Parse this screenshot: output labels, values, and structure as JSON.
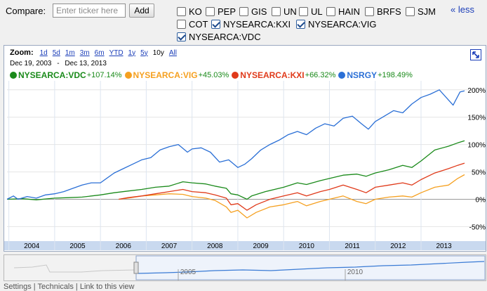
{
  "compare": {
    "label": "Compare:",
    "input_placeholder": "Enter ticker here",
    "input_value": "",
    "add_label": "Add",
    "less_label": "« less",
    "tickers": [
      {
        "symbol": "KO",
        "checked": false
      },
      {
        "symbol": "PEP",
        "checked": false
      },
      {
        "symbol": "GIS",
        "checked": false
      },
      {
        "symbol": "UN",
        "checked": false
      },
      {
        "symbol": "UL",
        "checked": false
      },
      {
        "symbol": "HAIN",
        "checked": false
      },
      {
        "symbol": "BRFS",
        "checked": false
      },
      {
        "symbol": "SJM",
        "checked": false
      },
      {
        "symbol": "COT",
        "checked": false
      },
      {
        "symbol": "NYSEARCA:KXI",
        "checked": true
      },
      {
        "symbol": "NYSEARCA:VIG",
        "checked": true
      },
      {
        "symbol": "NYSEARCA:VDC",
        "checked": true
      }
    ]
  },
  "zoom": {
    "label": "Zoom:",
    "options": [
      "1d",
      "5d",
      "1m",
      "3m",
      "6m",
      "YTD",
      "1y",
      "5y",
      "10y",
      "All"
    ],
    "active": "10y"
  },
  "date_range": {
    "start": "Dec 19, 2003",
    "separator": "-",
    "end": "Dec 13, 2013"
  },
  "icons": {
    "expand": "expand-icon"
  },
  "footer_text": "Settings | Technicals | Link to this view",
  "chart_data": {
    "type": "line",
    "x_tick_labels": [
      "2004",
      "2005",
      "2006",
      "2007",
      "2008",
      "2009",
      "2010",
      "2011",
      "2012",
      "2013"
    ],
    "y_tick_labels": [
      "200%",
      "150%",
      "100%",
      "50%",
      "0%",
      "-50%"
    ],
    "ylim": [
      -70,
      210
    ],
    "x_range": [
      2003.96,
      2013.95
    ],
    "grid": true,
    "legend_position": "top-left",
    "series": [
      {
        "name": "NYSEARCA:VDC",
        "change": "+107.14%",
        "color": "#1a8a1a",
        "points": [
          [
            2003.96,
            0
          ],
          [
            2004.3,
            1
          ],
          [
            2004.6,
            -1
          ],
          [
            2005.0,
            2
          ],
          [
            2005.3,
            3
          ],
          [
            2005.6,
            4
          ],
          [
            2006.0,
            8
          ],
          [
            2006.3,
            12
          ],
          [
            2006.6,
            15
          ],
          [
            2006.9,
            18
          ],
          [
            2007.2,
            22
          ],
          [
            2007.5,
            24
          ],
          [
            2007.8,
            32
          ],
          [
            2008.0,
            30
          ],
          [
            2008.3,
            28
          ],
          [
            2008.5,
            24
          ],
          [
            2008.75,
            20
          ],
          [
            2008.85,
            10
          ],
          [
            2009.0,
            8
          ],
          [
            2009.2,
            0
          ],
          [
            2009.3,
            6
          ],
          [
            2009.6,
            14
          ],
          [
            2010.0,
            22
          ],
          [
            2010.3,
            30
          ],
          [
            2010.5,
            27
          ],
          [
            2010.8,
            34
          ],
          [
            2011.0,
            38
          ],
          [
            2011.3,
            44
          ],
          [
            2011.6,
            46
          ],
          [
            2011.8,
            42
          ],
          [
            2012.0,
            48
          ],
          [
            2012.3,
            54
          ],
          [
            2012.6,
            62
          ],
          [
            2012.8,
            58
          ],
          [
            2013.0,
            70
          ],
          [
            2013.3,
            90
          ],
          [
            2013.6,
            97
          ],
          [
            2013.8,
            103
          ],
          [
            2013.95,
            107
          ]
        ]
      },
      {
        "name": "NYSEARCA:VIG",
        "change": "+45.03%",
        "color": "#f5a020",
        "points": [
          [
            2006.4,
            0
          ],
          [
            2006.6,
            2
          ],
          [
            2006.9,
            6
          ],
          [
            2007.2,
            8
          ],
          [
            2007.5,
            10
          ],
          [
            2007.8,
            9
          ],
          [
            2008.0,
            5
          ],
          [
            2008.3,
            2
          ],
          [
            2008.5,
            -2
          ],
          [
            2008.75,
            -14
          ],
          [
            2008.85,
            -24
          ],
          [
            2009.0,
            -20
          ],
          [
            2009.2,
            -34
          ],
          [
            2009.4,
            -24
          ],
          [
            2009.7,
            -14
          ],
          [
            2010.0,
            -10
          ],
          [
            2010.3,
            -4
          ],
          [
            2010.5,
            -12
          ],
          [
            2010.8,
            -4
          ],
          [
            2011.0,
            0
          ],
          [
            2011.3,
            6
          ],
          [
            2011.6,
            -4
          ],
          [
            2011.8,
            -8
          ],
          [
            2012.0,
            0
          ],
          [
            2012.3,
            4
          ],
          [
            2012.6,
            6
          ],
          [
            2012.8,
            4
          ],
          [
            2013.0,
            12
          ],
          [
            2013.3,
            22
          ],
          [
            2013.6,
            26
          ],
          [
            2013.8,
            38
          ],
          [
            2013.95,
            45
          ]
        ]
      },
      {
        "name": "NYSEARCA:KXI",
        "change": "+66.32%",
        "color": "#e03a1a",
        "points": [
          [
            2006.4,
            0
          ],
          [
            2006.6,
            3
          ],
          [
            2006.9,
            6
          ],
          [
            2007.2,
            10
          ],
          [
            2007.5,
            14
          ],
          [
            2007.8,
            18
          ],
          [
            2008.0,
            14
          ],
          [
            2008.3,
            12
          ],
          [
            2008.5,
            8
          ],
          [
            2008.75,
            2
          ],
          [
            2008.85,
            -10
          ],
          [
            2009.0,
            -8
          ],
          [
            2009.2,
            -20
          ],
          [
            2009.4,
            -10
          ],
          [
            2009.7,
            0
          ],
          [
            2010.0,
            6
          ],
          [
            2010.3,
            12
          ],
          [
            2010.5,
            6
          ],
          [
            2010.8,
            14
          ],
          [
            2011.0,
            18
          ],
          [
            2011.3,
            26
          ],
          [
            2011.6,
            18
          ],
          [
            2011.8,
            12
          ],
          [
            2012.0,
            22
          ],
          [
            2012.3,
            26
          ],
          [
            2012.6,
            30
          ],
          [
            2012.8,
            26
          ],
          [
            2013.0,
            36
          ],
          [
            2013.3,
            48
          ],
          [
            2013.6,
            56
          ],
          [
            2013.8,
            62
          ],
          [
            2013.95,
            66
          ]
        ]
      },
      {
        "name": "NSRGY",
        "change": "+198.49%",
        "color": "#2a6fd6",
        "points": [
          [
            2003.96,
            0
          ],
          [
            2004.1,
            6
          ],
          [
            2004.2,
            0
          ],
          [
            2004.4,
            5
          ],
          [
            2004.6,
            2
          ],
          [
            2004.8,
            8
          ],
          [
            2005.0,
            10
          ],
          [
            2005.2,
            14
          ],
          [
            2005.4,
            20
          ],
          [
            2005.6,
            26
          ],
          [
            2005.8,
            30
          ],
          [
            2006.0,
            30
          ],
          [
            2006.3,
            48
          ],
          [
            2006.5,
            56
          ],
          [
            2006.7,
            64
          ],
          [
            2006.9,
            72
          ],
          [
            2007.1,
            76
          ],
          [
            2007.3,
            90
          ],
          [
            2007.5,
            96
          ],
          [
            2007.7,
            100
          ],
          [
            2007.9,
            86
          ],
          [
            2008.0,
            92
          ],
          [
            2008.2,
            94
          ],
          [
            2008.4,
            86
          ],
          [
            2008.6,
            68
          ],
          [
            2008.8,
            72
          ],
          [
            2009.0,
            58
          ],
          [
            2009.15,
            64
          ],
          [
            2009.3,
            74
          ],
          [
            2009.5,
            90
          ],
          [
            2009.7,
            100
          ],
          [
            2009.9,
            108
          ],
          [
            2010.1,
            118
          ],
          [
            2010.3,
            124
          ],
          [
            2010.5,
            118
          ],
          [
            2010.7,
            130
          ],
          [
            2010.9,
            138
          ],
          [
            2011.1,
            134
          ],
          [
            2011.3,
            148
          ],
          [
            2011.5,
            152
          ],
          [
            2011.7,
            138
          ],
          [
            2011.85,
            128
          ],
          [
            2012.0,
            142
          ],
          [
            2012.2,
            152
          ],
          [
            2012.4,
            162
          ],
          [
            2012.6,
            158
          ],
          [
            2012.8,
            174
          ],
          [
            2013.0,
            186
          ],
          [
            2013.2,
            192
          ],
          [
            2013.4,
            200
          ],
          [
            2013.55,
            186
          ],
          [
            2013.7,
            172
          ],
          [
            2013.85,
            196
          ],
          [
            2013.95,
            198
          ]
        ]
      }
    ]
  },
  "navigator": {
    "tick_labels": [
      "2005",
      "2010"
    ]
  }
}
